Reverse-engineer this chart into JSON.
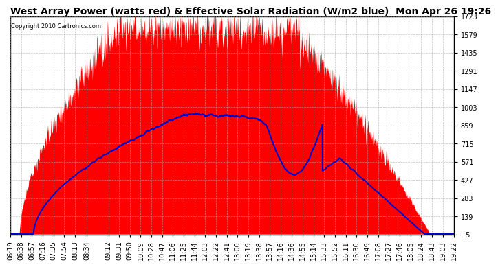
{
  "title": "West Array Power (watts red) & Effective Solar Radiation (W/m2 blue)  Mon Apr 26 19:26",
  "copyright": "Copyright 2010 Cartronics.com",
  "y_min": -4.6,
  "y_max": 1722.7,
  "y_ticks": [
    1722.7,
    1578.8,
    1434.9,
    1290.9,
    1147.0,
    1003.0,
    859.1,
    715.1,
    571.2,
    427.2,
    283.3,
    139.3,
    -4.6
  ],
  "background_color": "#ffffff",
  "grid_color": "#aaaaaa",
  "fill_color": "#ff0000",
  "line_color": "#0000cc",
  "title_fontsize": 10,
  "tick_fontsize": 7
}
